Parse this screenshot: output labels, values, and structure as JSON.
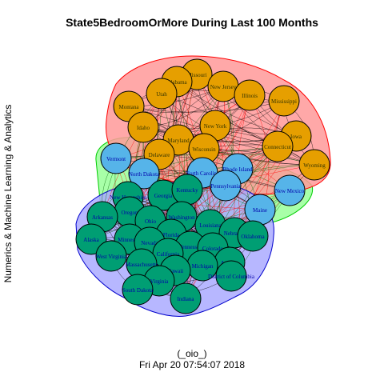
{
  "title": "State5BedroomOrMore During Last 100 Months",
  "y_label": "Numerics & Machine Learning & Analytics",
  "caption_line1": "(_oio_)",
  "caption_line2": "Fri Apr 20 07:54:07 2018",
  "colors": {
    "orange": "#E69F00",
    "blue": "#56B4E9",
    "green": "#009E73",
    "hull_red": "#FF9999",
    "hull_red_stroke": "#FF0000",
    "hull_green": "#99FF99",
    "hull_green_stroke": "#00CC00",
    "hull_blue": "#AAAAFF",
    "hull_blue_stroke": "#0000CC",
    "label_dark": "#333300",
    "label_blue": "#0000AA"
  },
  "groups": {
    "orange": [
      "Missouri",
      "Alabama",
      "New Jersey",
      "Utah",
      "Illinois",
      "Mississippi",
      "Montana",
      "New York",
      "Idaho",
      "Maryland",
      "Iowa",
      "Connecticut",
      "Wisconsin",
      "Delaware",
      "Wyoming"
    ],
    "blue": [
      "Vermont",
      "North Dakota",
      "North Carolina",
      "Rhode Island",
      "Pennsylvania",
      "New Mexico",
      "Maine"
    ],
    "green": [
      "Georgia",
      "Kentucky",
      "New Hampshire",
      "Oregon",
      "Washington",
      "Arkansas",
      "Ohio",
      "Louisiana",
      "Nebraska",
      "Oklahoma",
      "Alaska",
      "Florida",
      "Minnesota",
      "Nevada",
      "Tennessee",
      "Colorado",
      "West Virginia",
      "California",
      "Arizona",
      "Massachusetts",
      "Michigan",
      "Hawaii",
      "District of Columbia",
      "Virginia",
      "South Dakota",
      "Indiana"
    ]
  }
}
